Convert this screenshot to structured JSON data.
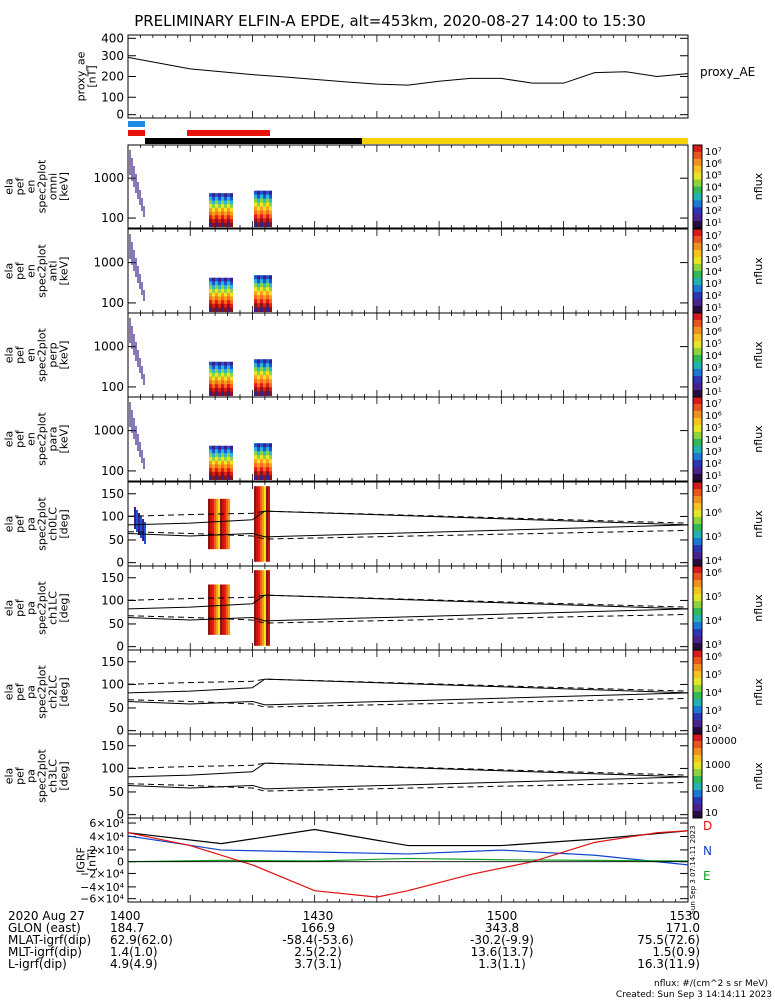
{
  "title": "PRELIMINARY ELFIN-A EPDE, alt=453km, 2020-08-27 14:00 to 15:30",
  "colors": {
    "blue_bar": "#1e88e5",
    "red_bar": "#e8120c",
    "black_bar": "#000000",
    "yellow_bar": "#f5d20a",
    "grf_black": "#000000",
    "grf_red": "#e01010",
    "grf_blue": "#1144cc",
    "grf_green": "#10a020"
  },
  "panels": [
    {
      "ylabel": [
        "proxy_ae",
        "[nT]"
      ],
      "ticks": [
        "400",
        "300",
        "200",
        "100",
        "0"
      ],
      "right_label": "proxy_AE"
    },
    {
      "ylabel": [
        "ela",
        "pef",
        "en",
        "spec2plot",
        "omni",
        "[keV]"
      ],
      "ticks": [
        "1000",
        "100"
      ],
      "cb_label": "nflux",
      "cb_ticks": [
        "10⁷",
        "10⁶",
        "10⁵",
        "10⁴",
        "10³",
        "10²",
        "10¹"
      ]
    },
    {
      "ylabel": [
        "ela",
        "pef",
        "en",
        "spec2plot",
        "anti",
        "[keV]"
      ],
      "ticks": [
        "1000",
        "100"
      ],
      "cb_label": "nflux",
      "cb_ticks": [
        "10⁷",
        "10⁶",
        "10⁵",
        "10⁴",
        "10³",
        "10²",
        "10¹"
      ]
    },
    {
      "ylabel": [
        "ela",
        "pef",
        "en",
        "spec2plot",
        "perp",
        "[keV]"
      ],
      "ticks": [
        "1000",
        "100"
      ],
      "cb_label": "nflux",
      "cb_ticks": [
        "10⁷",
        "10⁶",
        "10⁵",
        "10⁴",
        "10³",
        "10²",
        "10¹"
      ]
    },
    {
      "ylabel": [
        "ela",
        "pef",
        "en",
        "spec2plot",
        "para",
        "[keV]"
      ],
      "ticks": [
        "1000",
        "100"
      ],
      "cb_label": "nflux",
      "cb_ticks": [
        "10⁷",
        "10⁶",
        "10⁵",
        "10⁴",
        "10³",
        "10²",
        "10¹"
      ]
    },
    {
      "ylabel": [
        "ela",
        "pef",
        "pa",
        "spec2plot",
        "ch0LC",
        "[deg]"
      ],
      "ticks": [
        "150",
        "100",
        "50",
        "0"
      ],
      "cb_label": "nflux",
      "cb_ticks": [
        "10⁷",
        "10⁶",
        "10⁵",
        "10⁴"
      ]
    },
    {
      "ylabel": [
        "ela",
        "pef",
        "pa",
        "spec2plot",
        "ch1LC",
        "[deg]"
      ],
      "ticks": [
        "150",
        "100",
        "50",
        "0"
      ],
      "cb_label": "nflux",
      "cb_ticks": [
        "10⁶",
        "10⁵",
        "10⁴",
        "10³"
      ]
    },
    {
      "ylabel": [
        "ela",
        "pef",
        "pa",
        "spec2plot",
        "ch2LC",
        "[deg]"
      ],
      "ticks": [
        "150",
        "100",
        "50",
        "0"
      ],
      "cb_label": "nflux",
      "cb_ticks": [
        "10⁶",
        "10⁵",
        "10⁴",
        "10³",
        "10²"
      ]
    },
    {
      "ylabel": [
        "ela",
        "pef",
        "pa",
        "spec2plot",
        "ch3LC",
        "[deg]"
      ],
      "ticks": [
        "150",
        "100",
        "50",
        "0"
      ],
      "cb_label": "nflux",
      "cb_ticks": [
        "10000",
        "1000",
        "100",
        "10"
      ]
    },
    {
      "ylabel": [
        "IGRF",
        "[nT]"
      ],
      "ticks": [
        "6×10⁴",
        "4×10⁴",
        "2×10⁴",
        "0",
        "−2×10⁴",
        "−4×10⁴",
        "−6×10⁴"
      ],
      "right_letters": [
        "D",
        "N",
        "E"
      ]
    }
  ],
  "footer": {
    "rows": [
      {
        "label": "2020 Aug 27",
        "values": [
          "1400",
          "1430",
          "1500",
          "1530"
        ]
      },
      {
        "label": "GLON (east)",
        "values": [
          "184.7",
          "166.9",
          "343.8",
          "171.0"
        ]
      },
      {
        "label": "MLAT-igrf(dip)",
        "values": [
          "62.9(62.0)",
          "-58.4(-53.6)",
          "-30.2(-9.9)",
          "75.5(72.6)"
        ]
      },
      {
        "label": "MLT-igrf(dip)",
        "values": [
          "1.4(1.0)",
          "2.5(2.2)",
          "13.6(13.7)",
          "1.5(0.9)"
        ]
      },
      {
        "label": "L-igrf(dip)",
        "values": [
          "4.9(4.9)",
          "3.7(3.1)",
          "1.3(1.1)",
          "16.3(11.9)"
        ]
      }
    ],
    "nflux_note": "nflux: #/(cm^2 s sr MeV)",
    "created": "Created: Sun Sep  3 14:14:11 2023",
    "side_stamp": "Sun Sep  3 07:14:11 2023"
  },
  "chart_data": {
    "type": "line",
    "x_range": [
      "14:00",
      "15:30"
    ],
    "x_tick_labels": [
      "1400",
      "1430",
      "1500",
      "1530"
    ],
    "proxy_ae": {
      "ylim": [
        0,
        400
      ],
      "time_min": [
        0,
        5,
        10,
        15,
        20,
        25,
        30,
        35,
        40,
        45,
        50,
        55,
        60,
        65,
        70,
        75,
        80,
        85,
        90
      ],
      "values": [
        300,
        270,
        240,
        225,
        210,
        198,
        185,
        172,
        160,
        155,
        175,
        190,
        190,
        165,
        165,
        220,
        225,
        200,
        215
      ]
    },
    "pa_lines": {
      "ylim": [
        0,
        180
      ],
      "solid_lower": {
        "time_min": [
          0,
          10,
          20,
          22,
          90
        ],
        "values": [
          68,
          62,
          68,
          60,
          88
        ]
      },
      "solid_upper": {
        "time_min": [
          0,
          10,
          20,
          22,
          90
        ],
        "values": [
          88,
          92,
          100,
          120,
          88
        ]
      },
      "dashed_upper": {
        "time_min": [
          0,
          10,
          20,
          22,
          90
        ],
        "values": [
          108,
          112,
          115,
          120,
          92
        ]
      },
      "dashed_lower": {
        "time_min": [
          0,
          10,
          20,
          22,
          90
        ],
        "values": [
          72,
          68,
          62,
          55,
          75
        ]
      }
    },
    "igrf": {
      "ylim": [
        -60000,
        60000
      ],
      "series": [
        {
          "name": "D",
          "time_min": [
            0,
            15,
            30,
            45,
            60,
            75,
            90
          ],
          "values": [
            45000,
            28000,
            50000,
            25000,
            25000,
            35000,
            48000
          ]
        },
        {
          "name": "N",
          "time_min": [
            0,
            15,
            30,
            45,
            60,
            75,
            90
          ],
          "values": [
            40000,
            18000,
            15000,
            12000,
            18000,
            10000,
            -5000
          ]
        },
        {
          "name": "E",
          "time_min": [
            0,
            15,
            30,
            45,
            60,
            75,
            90
          ],
          "values": [
            0,
            2000,
            1000,
            5000,
            3000,
            2000,
            1000
          ]
        },
        {
          "name": "IGRF-red",
          "time_min": [
            0,
            10,
            20,
            30,
            40,
            45,
            55,
            65,
            75,
            85,
            90
          ],
          "values": [
            45000,
            25000,
            -5000,
            -45000,
            -55000,
            -45000,
            -20000,
            0,
            30000,
            45000,
            48000
          ]
        }
      ]
    },
    "spectrogram_burst_times_min": [
      1,
      13,
      21
    ]
  }
}
